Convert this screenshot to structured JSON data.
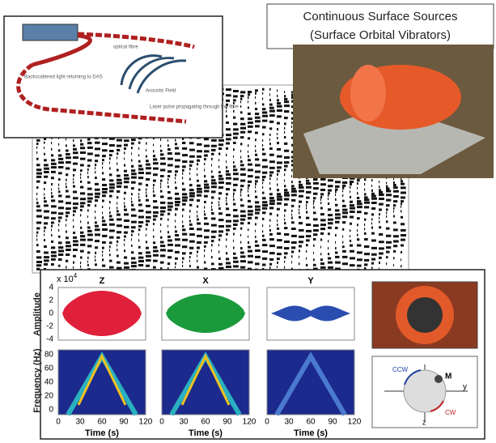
{
  "fibre_diagram": {
    "labels": [
      "optical fibre",
      "Backscattered light returning to DAS",
      "Acoustic Field",
      "Laser pulse propagating through the fibre"
    ]
  },
  "photo": {
    "title": [
      "Continuous Surface Sources",
      "(Surface Orbital Vibrators)"
    ]
  },
  "waveform_panel": {
    "exponent": {
      "base": "x 10",
      "power": "4"
    },
    "amplitude_label": "Amplitude",
    "frequency_label": "Frequency (Hz)",
    "amplitude_ticks": [
      "4",
      "2",
      "0",
      "-2",
      "-4"
    ],
    "frequency_ticks": [
      "80",
      "60",
      "40",
      "20",
      "0"
    ],
    "time_ticks": [
      "0",
      "30",
      "60",
      "90",
      "120"
    ],
    "time_label": "Time (s)",
    "components": [
      "Z",
      "X",
      "Y"
    ]
  },
  "orbit_diagram": {
    "labels": [
      "CCW",
      "M",
      "y",
      "z",
      "CW"
    ]
  }
}
